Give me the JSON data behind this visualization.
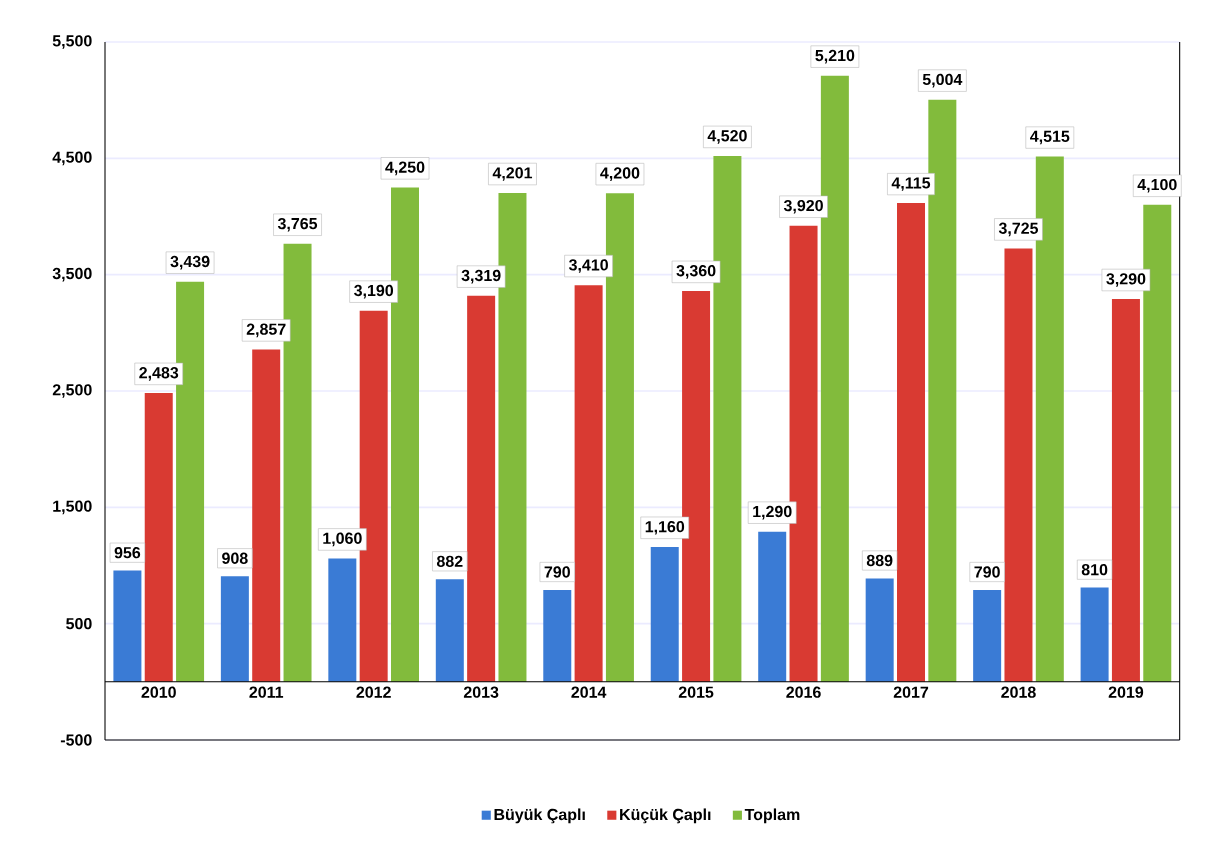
{
  "chart_data": {
    "type": "bar",
    "categories": [
      "2010",
      "2011",
      "2012",
      "2013",
      "2014",
      "2015",
      "2016",
      "2017",
      "2018",
      "2019"
    ],
    "series": [
      {
        "name": "Büyük Çaplı",
        "color": "#3a7bd5",
        "values": [
          956,
          908,
          1060,
          882,
          790,
          1160,
          1290,
          889,
          790,
          810
        ],
        "value_labels": [
          "956",
          "908",
          "1,060",
          "882",
          "790",
          "1,160",
          "1,290",
          "889",
          "790",
          "810"
        ]
      },
      {
        "name": "Küçük Çaplı",
        "color": "#d93a32",
        "values": [
          2483,
          2857,
          3190,
          3319,
          3410,
          3360,
          3920,
          4115,
          3725,
          3290
        ],
        "value_labels": [
          "2,483",
          "2,857",
          "3,190",
          "3,319",
          "3,410",
          "3,360",
          "3,920",
          "4,115",
          "3,725",
          "3,290"
        ]
      },
      {
        "name": "Toplam",
        "color": "#82bb3c",
        "values": [
          3439,
          3765,
          4250,
          4201,
          4200,
          4520,
          5210,
          5004,
          4515,
          4100
        ],
        "value_labels": [
          "3,439",
          "3,765",
          "4,250",
          "4,201",
          "4,200",
          "4,520",
          "5,210",
          "5,004",
          "4,515",
          "4,100"
        ]
      }
    ],
    "ylim": [
      -500,
      5500
    ],
    "yticks": [
      {
        "value": -500,
        "label": "-500"
      },
      {
        "value": 500,
        "label": "500"
      },
      {
        "value": 1500,
        "label": "1,500"
      },
      {
        "value": 2500,
        "label": "2,500"
      },
      {
        "value": 3500,
        "label": "3,500"
      },
      {
        "value": 4500,
        "label": "4,500"
      },
      {
        "value": 5500,
        "label": "5,500"
      }
    ],
    "grid": "y",
    "legend": "bottom"
  }
}
